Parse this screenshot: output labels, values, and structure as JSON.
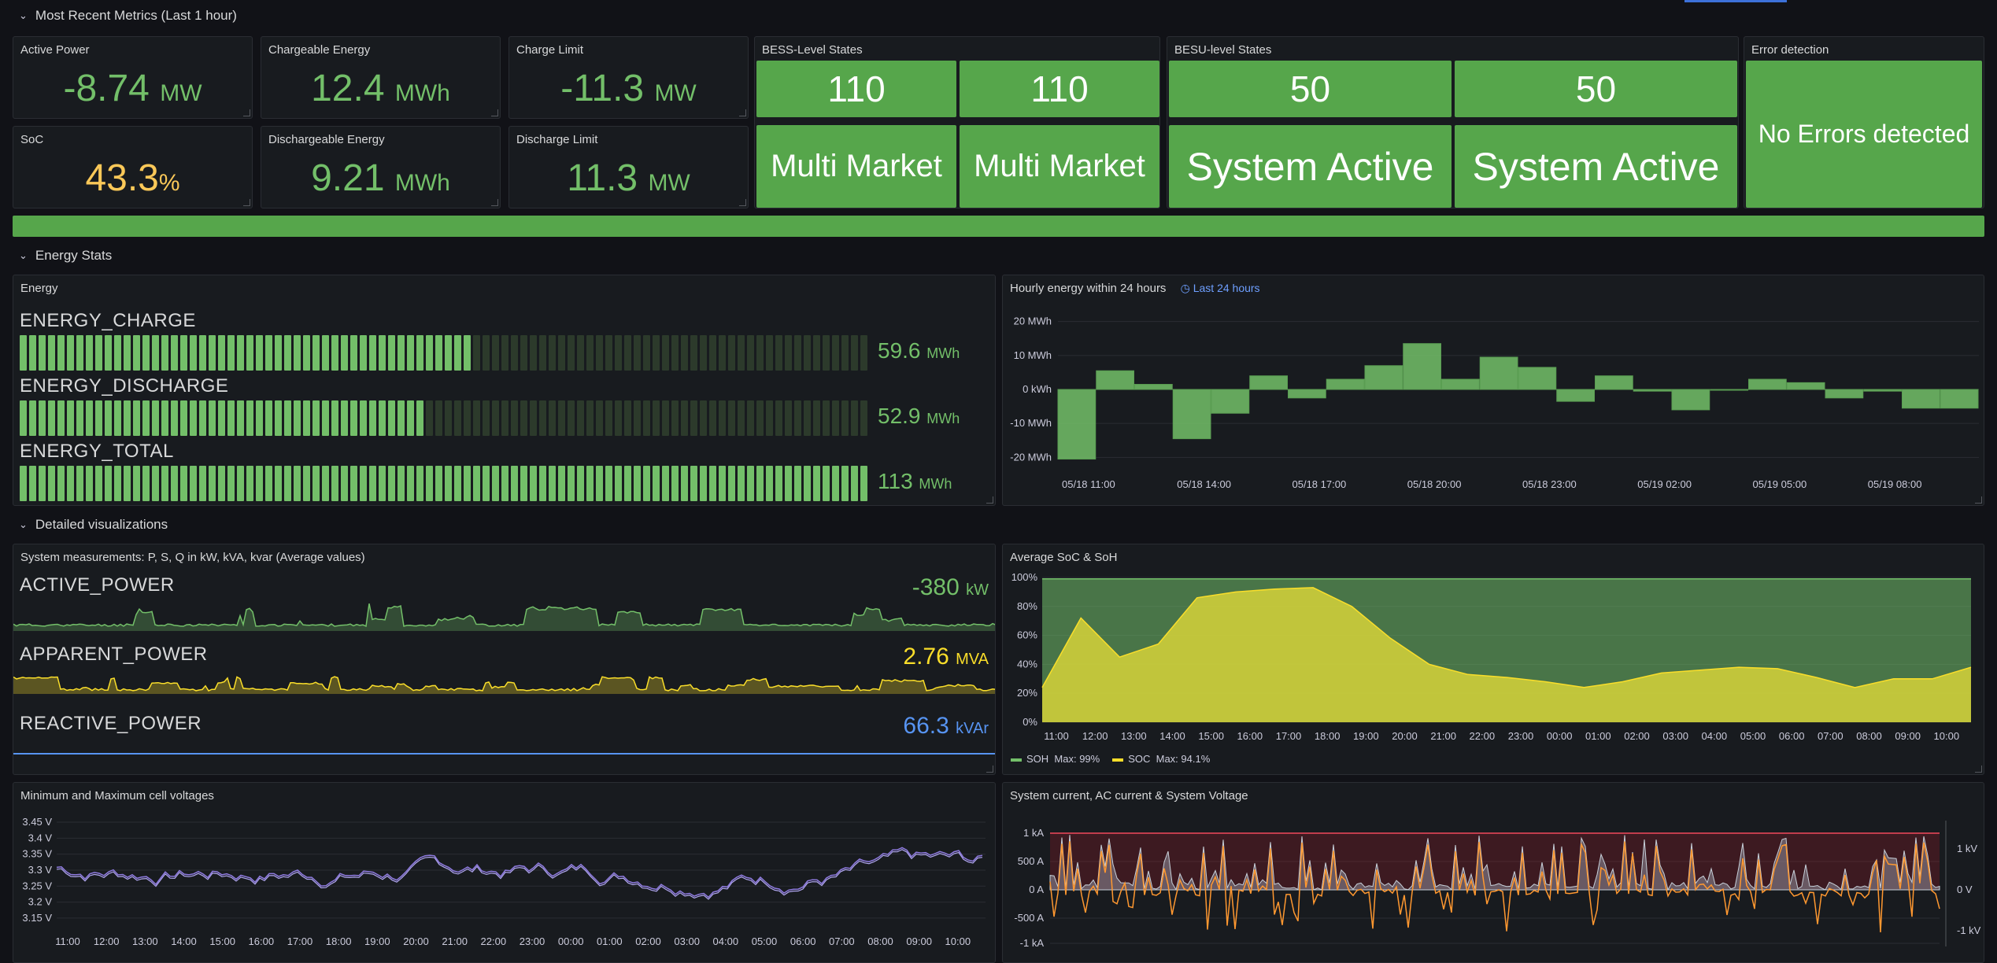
{
  "rows": {
    "recent": "Most Recent Metrics (Last 1 hour)",
    "energy": "Energy Stats",
    "detailed": "Detailed visualizations"
  },
  "stats": {
    "active_power": {
      "title": "Active Power",
      "value": "-8.74",
      "unit": "MW"
    },
    "chargeable": {
      "title": "Chargeable Energy",
      "value": "12.4",
      "unit": "MWh"
    },
    "charge_limit": {
      "title": "Charge Limit",
      "value": "-11.3",
      "unit": "MW"
    },
    "soc": {
      "title": "SoC",
      "value": "43.3",
      "unit": "%"
    },
    "dischargeable": {
      "title": "Dischargeable Energy",
      "value": "9.21",
      "unit": "MWh"
    },
    "discharge_limit": {
      "title": "Discharge Limit",
      "value": "11.3",
      "unit": "MW"
    }
  },
  "bess_states": {
    "title": "BESS-Level States",
    "codes": [
      "110",
      "110"
    ],
    "labels": [
      "Multi Market",
      "Multi Market"
    ]
  },
  "besu_states": {
    "title": "BESU-level States",
    "codes": [
      "50",
      "50"
    ],
    "labels": [
      "System Active",
      "System Active"
    ]
  },
  "error_detection": {
    "title": "Error detection",
    "text": "No Errors detected"
  },
  "colors": {
    "ok_green": "#56a64b",
    "value_green": "#73bf69",
    "value_yellow": "#fac858",
    "value_blue": "#5794f2",
    "background": "#111217",
    "panel": "#181b1f"
  },
  "energy_panel": {
    "title": "Energy",
    "items": [
      {
        "label": "ENERGY_CHARGE",
        "value": "59.6",
        "unit": "MWh",
        "fill": 0.53
      },
      {
        "label": "ENERGY_DISCHARGE",
        "value": "52.9",
        "unit": "MWh",
        "fill": 0.48
      },
      {
        "label": "ENERGY_TOTAL",
        "value": "113",
        "unit": "MWh",
        "fill": 1.0
      }
    ]
  },
  "hourly_panel": {
    "title": "Hourly energy within 24 hours",
    "time_range": "Last 24 hours",
    "chart_data": {
      "type": "bar",
      "y_unit": "MWh",
      "ylim": [
        -22,
        22
      ],
      "y_ticks": [
        {
          "v": 20,
          "label": "20 MWh"
        },
        {
          "v": 10,
          "label": "10 MWh"
        },
        {
          "v": 0,
          "label": "0 kWh"
        },
        {
          "v": -10,
          "label": "-10 MWh"
        },
        {
          "v": -20,
          "label": "-20 MWh"
        }
      ],
      "x_ticks": [
        "05/18 11:00",
        "05/18 14:00",
        "05/18 17:00",
        "05/18 20:00",
        "05/18 23:00",
        "05/19 02:00",
        "05/19 05:00",
        "05/19 08:00"
      ],
      "values": [
        -20.5,
        5.5,
        1.5,
        -14.5,
        -7,
        4,
        -2.5,
        3,
        7,
        13.5,
        3,
        9.5,
        6.5,
        -3.5,
        4,
        -0.5,
        -6,
        0,
        3,
        2,
        -2.5,
        -0.5,
        -5.5,
        -5.5
      ]
    }
  },
  "measurements_panel": {
    "title": "System measurements: P, S, Q in kW, kVA, kvar (Average values)",
    "items": [
      {
        "label": "ACTIVE_POWER",
        "value": "-380",
        "unit": "kW"
      },
      {
        "label": "APPARENT_POWER",
        "value": "2.76",
        "unit": "MVA"
      },
      {
        "label": "REACTIVE_POWER",
        "value": "66.3",
        "unit": "kVAr"
      }
    ]
  },
  "soc_soh_panel": {
    "title": "Average SoC & SoH",
    "chart_data": {
      "type": "area",
      "ylim": [
        0,
        100
      ],
      "y_ticks": [
        "0%",
        "20%",
        "40%",
        "60%",
        "80%",
        "100%"
      ],
      "x_ticks": [
        "11:00",
        "12:00",
        "13:00",
        "14:00",
        "15:00",
        "16:00",
        "17:00",
        "18:00",
        "19:00",
        "20:00",
        "21:00",
        "22:00",
        "23:00",
        "00:00",
        "01:00",
        "02:00",
        "03:00",
        "04:00",
        "05:00",
        "06:00",
        "07:00",
        "08:00",
        "09:00",
        "10:00"
      ],
      "series": [
        {
          "name": "SOH",
          "values": [
            99,
            99,
            99,
            99,
            99,
            99,
            99,
            99,
            99,
            99,
            99,
            99,
            99,
            99,
            99,
            99,
            99,
            99,
            99,
            99,
            99,
            99,
            99,
            99,
            99
          ]
        },
        {
          "name": "SOC",
          "values": [
            24,
            72,
            45,
            54,
            86,
            90,
            92,
            93,
            80,
            58,
            40,
            33,
            31,
            28,
            24,
            28,
            34,
            36,
            38,
            37,
            31,
            24,
            30,
            30,
            38
          ]
        }
      ],
      "legend": [
        {
          "name": "SOH",
          "stat": "Max: 99%"
        },
        {
          "name": "SOC",
          "stat": "Max: 94.1%"
        }
      ]
    }
  },
  "cell_voltage_panel": {
    "title": "Minimum and Maximum cell voltages",
    "chart_data": {
      "type": "line",
      "ylim": [
        3.13,
        3.46
      ],
      "y_ticks": [
        "3.15 V",
        "3.2 V",
        "3.25 V",
        "3.3 V",
        "3.35 V",
        "3.4 V",
        "3.45 V"
      ],
      "x_ticks": [
        "11:00",
        "12:00",
        "13:00",
        "14:00",
        "15:00",
        "16:00",
        "17:00",
        "18:00",
        "19:00",
        "20:00",
        "21:00",
        "22:00",
        "23:00",
        "00:00",
        "01:00",
        "02:00",
        "03:00",
        "04:00",
        "05:00",
        "06:00",
        "07:00",
        "08:00",
        "09:00",
        "10:00"
      ]
    }
  },
  "current_panel": {
    "title": "System current, AC current & System Voltage",
    "chart_data": {
      "type": "line",
      "y_ticks_left": [
        "1 kA",
        "500 A",
        "0 A",
        "-500 A",
        "-1 kA"
      ],
      "y_ticks_right": [
        "1 kV",
        "0 V",
        "-1 kV"
      ]
    }
  }
}
